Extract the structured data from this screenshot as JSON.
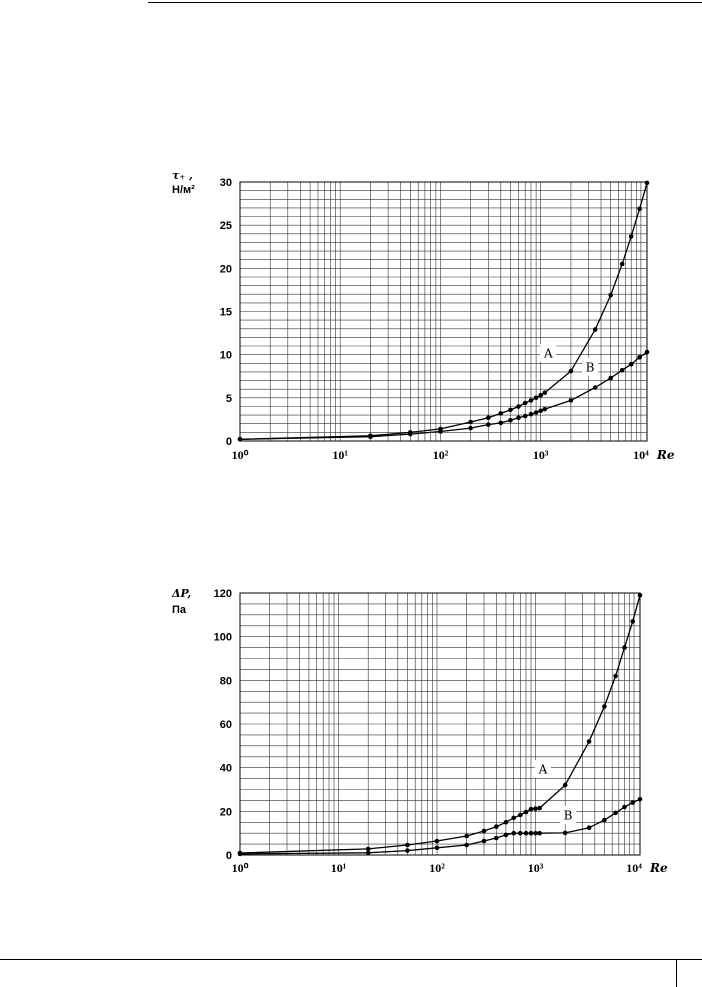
{
  "chart_data": [
    {
      "type": "line",
      "xscale": "log",
      "xlabel": "Re",
      "ylabel": "τ₊ ,",
      "yunit": "Н/м²",
      "xlim": [
        1,
        11500
      ],
      "ylim": [
        0,
        30
      ],
      "xticks": [
        1,
        10,
        100,
        1000,
        10000
      ],
      "xtick_labels": [
        "10⁰",
        "10¹",
        "10²",
        "10³",
        "10⁴"
      ],
      "yticks": [
        0,
        5,
        10,
        15,
        20,
        25,
        30
      ],
      "ytick_labels": [
        "0",
        "5",
        "10",
        "15",
        "20",
        "25",
        "30"
      ],
      "grid": true,
      "ygrid_step": 1,
      "series": [
        {
          "name": "A",
          "label_at": [
            1190,
            10.2
          ],
          "x": [
            1,
            20,
            50,
            100,
            200,
            300,
            400,
            500,
            600,
            700,
            800,
            900,
            1000,
            1100,
            2000,
            3500,
            5000,
            6500,
            8000,
            9700,
            11500
          ],
          "y": [
            0.2,
            0.6,
            1.0,
            1.4,
            2.2,
            2.7,
            3.2,
            3.6,
            4.0,
            4.4,
            4.7,
            5.0,
            5.3,
            5.6,
            8.1,
            12.9,
            16.9,
            20.5,
            23.7,
            26.9,
            29.9
          ]
        },
        {
          "name": "B",
          "label_at": [
            3110,
            8.6
          ],
          "x": [
            1,
            20,
            50,
            100,
            200,
            300,
            400,
            500,
            600,
            700,
            800,
            900,
            1000,
            1100,
            2000,
            3500,
            5000,
            6500,
            8000,
            9700,
            11500
          ],
          "y": [
            0.2,
            0.5,
            0.8,
            1.1,
            1.5,
            1.9,
            2.1,
            2.4,
            2.7,
            2.9,
            3.1,
            3.3,
            3.5,
            3.7,
            4.7,
            6.2,
            7.3,
            8.2,
            8.9,
            9.7,
            10.3
          ]
        }
      ]
    },
    {
      "type": "line",
      "xscale": "log",
      "xlabel": "Re",
      "ylabel": "ΔP,",
      "yunit": "Па",
      "xlim": [
        1,
        11500
      ],
      "ylim": [
        0,
        120
      ],
      "xticks": [
        1,
        10,
        100,
        1000,
        10000
      ],
      "xtick_labels": [
        "10⁰",
        "10¹",
        "10²",
        "10³",
        "10⁴"
      ],
      "yticks": [
        0,
        20,
        40,
        60,
        80,
        100,
        120
      ],
      "ytick_labels": [
        "0",
        "20",
        "40",
        "60",
        "80",
        "100",
        "120"
      ],
      "grid": true,
      "ygrid_step": 5,
      "series": [
        {
          "name": "A",
          "label_at": [
            1190,
            39.4
          ],
          "x": [
            1,
            20,
            50,
            100,
            200,
            300,
            400,
            500,
            600,
            700,
            800,
            900,
            1000,
            1100,
            2000,
            3500,
            5000,
            6500,
            8000,
            9700,
            11500
          ],
          "y": [
            0.9,
            2.8,
            4.6,
            6.4,
            8.7,
            11,
            13,
            15,
            17,
            18.3,
            19.7,
            21,
            21.2,
            21.5,
            32,
            52,
            68,
            82,
            95,
            107,
            119
          ]
        },
        {
          "name": "B",
          "label_at": [
            2140,
            18.3
          ],
          "x": [
            1,
            20,
            50,
            100,
            200,
            300,
            400,
            500,
            600,
            700,
            800,
            900,
            1000,
            1100,
            2000,
            3500,
            5000,
            6500,
            8000,
            9700,
            11500
          ],
          "y": [
            0.5,
            1.0,
            2.0,
            3.3,
            4.6,
            6.4,
            7.8,
            9.2,
            10,
            10,
            10,
            10,
            10,
            10,
            10.1,
            12.5,
            16,
            19.3,
            22,
            24,
            25.5
          ]
        }
      ]
    }
  ]
}
